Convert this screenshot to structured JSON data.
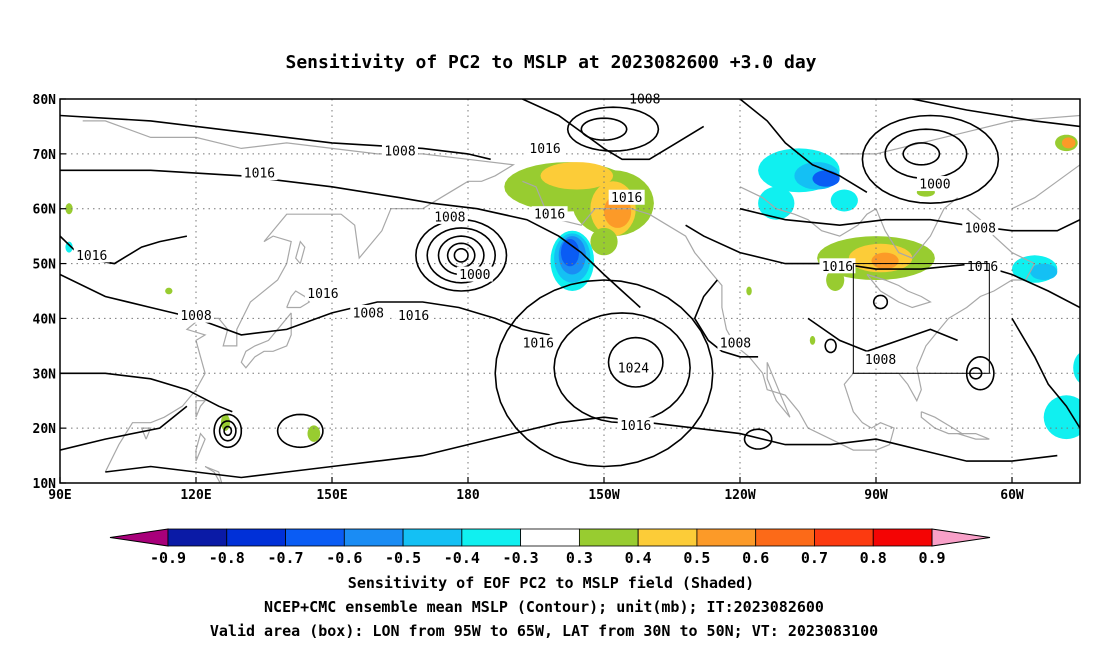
{
  "chart_data": {
    "type": "contour",
    "title": "Sensitivity of PC2 to MSLP at 2023082600 +3.0 day",
    "x_ticks": [
      "90E",
      "120E",
      "150E",
      "180",
      "150W",
      "120W",
      "90W",
      "60W"
    ],
    "y_ticks": [
      "10N",
      "20N",
      "30N",
      "40N",
      "50N",
      "60N",
      "70N",
      "80N"
    ],
    "grid": true,
    "colorbar": {
      "labels": [
        "-0.9",
        "-0.8",
        "-0.7",
        "-0.6",
        "-0.5",
        "-0.4",
        "-0.3",
        "0.3",
        "0.4",
        "0.5",
        "0.6",
        "0.7",
        "0.8",
        "0.9"
      ],
      "colors": [
        "#a8007a",
        "#0a1aa6",
        "#0030d8",
        "#0a5cf4",
        "#1a8cf4",
        "#14c0f4",
        "#10f0f0",
        "#ffffff",
        "#98cc30",
        "#fccc38",
        "#fc9a28",
        "#fc6a18",
        "#fc3a10",
        "#f40404",
        "#f8a0c8"
      ]
    },
    "contour_labels": [
      {
        "text": "1008",
        "lon": -141,
        "lat": 80
      },
      {
        "text": "1008",
        "lon": 165,
        "lat": 70.5
      },
      {
        "text": "1016",
        "lon": 134,
        "lat": 66.5
      },
      {
        "text": "1016",
        "lon": -163,
        "lat": 71
      },
      {
        "text": "1016",
        "lon": -145,
        "lat": 62
      },
      {
        "text": "1016",
        "lon": -162,
        "lat": 59
      },
      {
        "text": "1008",
        "lon": 176,
        "lat": 58.5
      },
      {
        "text": "1000",
        "lon": -178.5,
        "lat": 48
      },
      {
        "text": "1016",
        "lon": 97,
        "lat": 51.5
      },
      {
        "text": "1016",
        "lon": 148,
        "lat": 44.5
      },
      {
        "text": "1008",
        "lon": 120,
        "lat": 40.5
      },
      {
        "text": "1008",
        "lon": 158,
        "lat": 41
      },
      {
        "text": "1016",
        "lon": 168,
        "lat": 40.5
      },
      {
        "text": "1016",
        "lon": -164.5,
        "lat": 35.5
      },
      {
        "text": "1024",
        "lon": -143.5,
        "lat": 31
      },
      {
        "text": "1008",
        "lon": -121,
        "lat": 35.5
      },
      {
        "text": "1016",
        "lon": -143,
        "lat": 20.5
      },
      {
        "text": "1000",
        "lon": -77,
        "lat": 64.5
      },
      {
        "text": "1008",
        "lon": -67,
        "lat": 56.5
      },
      {
        "text": "1016",
        "lon": -98.5,
        "lat": 49.5
      },
      {
        "text": "1016",
        "lon": -66.5,
        "lat": 49.5
      },
      {
        "text": "1008",
        "lon": -89,
        "lat": 32.5
      }
    ],
    "valid_area_box": {
      "lon": [
        -95,
        -65
      ],
      "lat": [
        30,
        50
      ]
    }
  },
  "footer": {
    "line1": "Sensitivity of EOF PC2 to MSLP field (Shaded)",
    "line2": "NCEP+CMC ensemble mean MSLP (Contour); unit(mb); IT:2023082600",
    "line3": "Valid area (box): LON from 95W to 65W, LAT from 30N to 50N; VT: 2023083100"
  }
}
